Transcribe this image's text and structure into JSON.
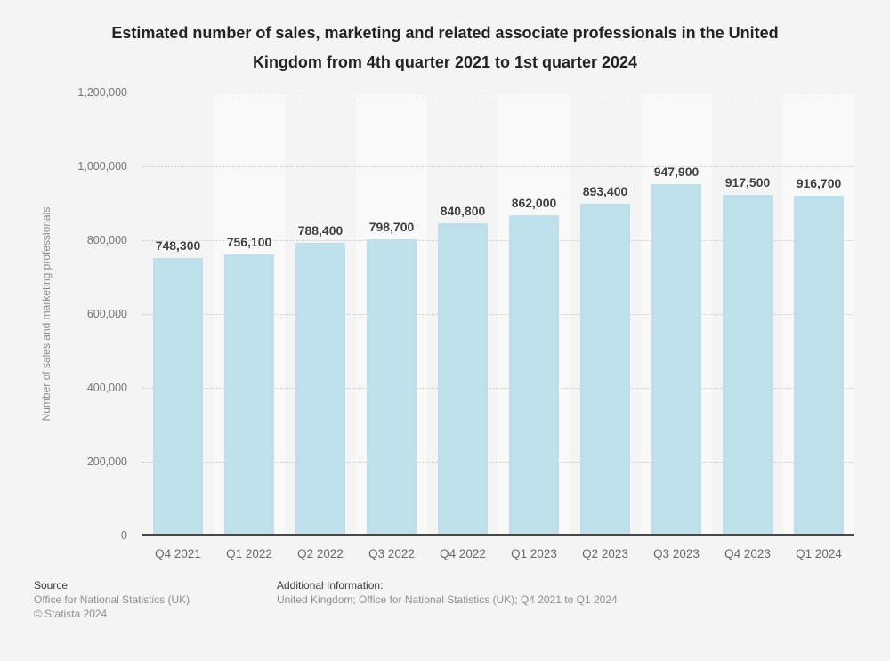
{
  "title": "Estimated number of sales, marketing and related associate professionals in the United Kingdom from 4th quarter 2021 to 1st quarter 2024",
  "chart_data": {
    "type": "bar",
    "title": "Estimated number of sales, marketing and related associate professionals in the United Kingdom from 4th quarter 2021 to 1st quarter 2024",
    "categories": [
      "Q4 2021",
      "Q1 2022",
      "Q2 2022",
      "Q3 2022",
      "Q4 2022",
      "Q1 2023",
      "Q2 2023",
      "Q3 2023",
      "Q4 2023",
      "Q1 2024"
    ],
    "values": [
      748300,
      756100,
      788400,
      798700,
      840800,
      862000,
      893400,
      947900,
      917500,
      916700
    ],
    "value_labels": [
      "748,300",
      "756,100",
      "788,400",
      "798,700",
      "840,800",
      "862,000",
      "893,400",
      "947,900",
      "917,500",
      "916,700"
    ],
    "xlabel": "",
    "ylabel": "Number of sales and marketing professionals",
    "ylim": [
      0,
      1200000
    ],
    "ytick_interval": 200000,
    "ytick_labels_top_down": [
      "1,200,000",
      "1,000,000",
      "800,000",
      "600,000",
      "400,000",
      "200,000",
      "0"
    ],
    "grid": "horizontal-dotted",
    "legend": "none",
    "bar_color": "#bde0ea",
    "alt_band_color": "#f9f9f9"
  },
  "colors": {
    "page_background": "#f4f4f4",
    "bar": "#bde0ea",
    "alt_band": "#f9f9f9",
    "axis_line": "#474747",
    "gridline": "#c9c9c9",
    "title_text": "#232323",
    "tick_text": "#757575",
    "value_label_text": "#3f3f3f"
  },
  "footer": {
    "source_label": "Source",
    "source_line1": "Office for National Statistics (UK)",
    "source_line2": "© Statista 2024",
    "additional_label": "Additional Information:",
    "additional_line": "United Kingdom; Office for National Statistics (UK); Q4 2021 to Q1 2024"
  }
}
